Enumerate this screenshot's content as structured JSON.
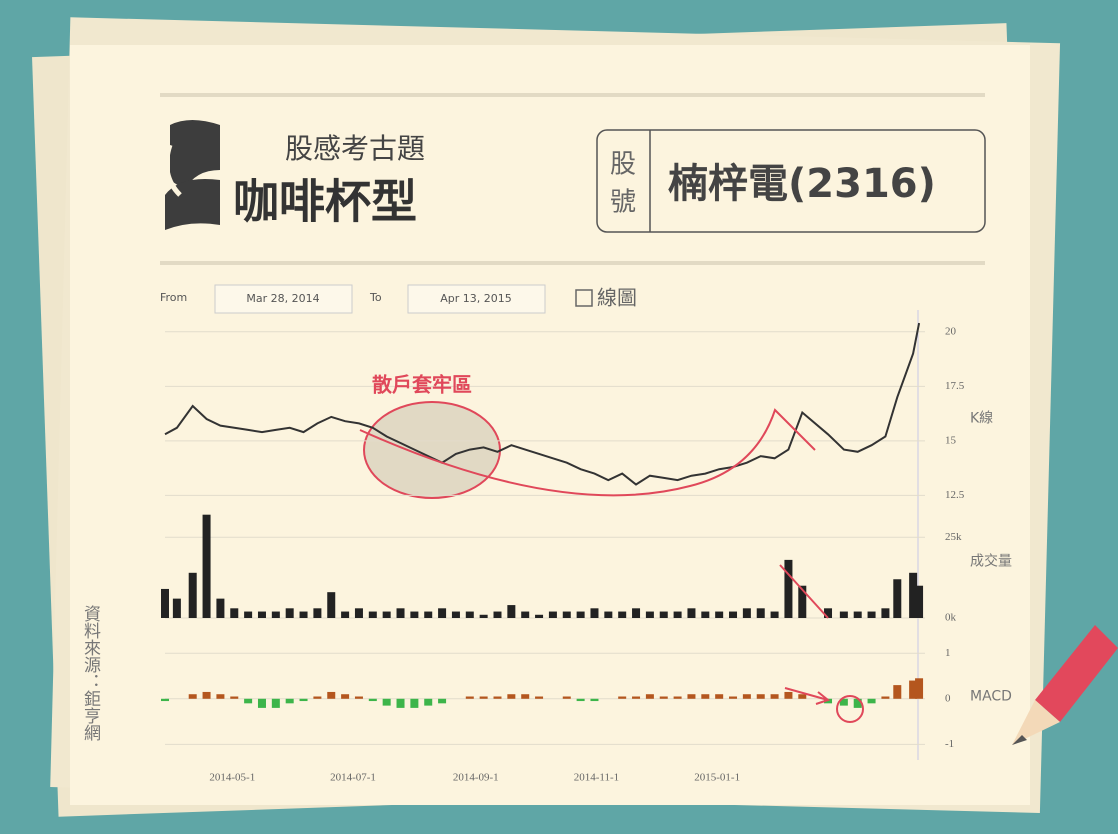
{
  "header": {
    "subtitle": "股感考古題",
    "title": "咖啡杯型",
    "code_label_1": "股",
    "code_label_2": "號",
    "stock": "楠梓電(2316)"
  },
  "controls": {
    "from_label": "From",
    "from_date": "Mar 28, 2014",
    "to_label": "To",
    "to_date": "Apr 13, 2015",
    "checkbox_label": "線圖"
  },
  "source": "資料來源：鉅亨網",
  "chart_data": [
    {
      "type": "line",
      "y_label": "K線",
      "annotation": "散戶套牢區",
      "color": "#333333",
      "grid": true,
      "x": [
        "2014-03-28",
        "2014-04-03",
        "2014-04-11",
        "2014-04-18",
        "2014-04-25",
        "2014-05-02",
        "2014-05-09",
        "2014-05-16",
        "2014-05-23",
        "2014-05-30",
        "2014-06-06",
        "2014-06-13",
        "2014-06-20",
        "2014-06-27",
        "2014-07-04",
        "2014-07-11",
        "2014-07-18",
        "2014-07-25",
        "2014-08-01",
        "2014-08-08",
        "2014-08-15",
        "2014-08-22",
        "2014-08-29",
        "2014-09-05",
        "2014-09-12",
        "2014-09-19",
        "2014-09-26",
        "2014-10-03",
        "2014-10-10",
        "2014-10-17",
        "2014-10-24",
        "2014-10-31",
        "2014-11-07",
        "2014-11-14",
        "2014-11-21",
        "2014-11-28",
        "2014-12-05",
        "2014-12-12",
        "2014-12-19",
        "2014-12-26",
        "2015-01-02",
        "2015-01-09",
        "2015-01-16",
        "2015-01-23",
        "2015-01-30",
        "2015-02-06",
        "2015-02-13",
        "2015-02-26",
        "2015-03-06",
        "2015-03-13",
        "2015-03-20",
        "2015-03-27",
        "2015-04-02",
        "2015-04-10",
        "2015-04-13"
      ],
      "values": [
        15.3,
        15.6,
        16.6,
        16.0,
        15.7,
        15.6,
        15.5,
        15.4,
        15.5,
        15.6,
        15.4,
        15.8,
        16.1,
        15.9,
        15.8,
        15.6,
        15.2,
        14.9,
        14.6,
        14.3,
        14.0,
        14.4,
        14.6,
        14.7,
        14.5,
        14.8,
        14.6,
        14.4,
        14.2,
        14.0,
        13.7,
        13.5,
        13.2,
        13.5,
        13.0,
        13.4,
        13.3,
        13.2,
        13.4,
        13.5,
        13.7,
        13.8,
        14.0,
        14.3,
        14.2,
        14.6,
        16.3,
        15.3,
        14.6,
        14.5,
        14.8,
        15.2,
        17.0,
        19.0,
        20.4
      ],
      "xlim": [
        "2014-03-28",
        "2015-04-16"
      ],
      "ylim": [
        11.6,
        21.0
      ],
      "yticks": [
        12.5,
        15,
        17.5,
        20
      ]
    },
    {
      "type": "bar",
      "y_label": "成交量",
      "color": "#222222",
      "grid": true,
      "x": [
        "2014-03-28",
        "2014-04-03",
        "2014-04-11",
        "2014-04-18",
        "2014-04-25",
        "2014-05-02",
        "2014-05-09",
        "2014-05-16",
        "2014-05-23",
        "2014-05-30",
        "2014-06-06",
        "2014-06-13",
        "2014-06-20",
        "2014-06-27",
        "2014-07-04",
        "2014-07-11",
        "2014-07-18",
        "2014-07-25",
        "2014-08-01",
        "2014-08-08",
        "2014-08-15",
        "2014-08-22",
        "2014-08-29",
        "2014-09-05",
        "2014-09-12",
        "2014-09-19",
        "2014-09-26",
        "2014-10-03",
        "2014-10-10",
        "2014-10-17",
        "2014-10-24",
        "2014-10-31",
        "2014-11-07",
        "2014-11-14",
        "2014-11-21",
        "2014-11-28",
        "2014-12-05",
        "2014-12-12",
        "2014-12-19",
        "2014-12-26",
        "2015-01-02",
        "2015-01-09",
        "2015-01-16",
        "2015-01-23",
        "2015-01-30",
        "2015-02-06",
        "2015-02-13",
        "2015-02-26",
        "2015-03-06",
        "2015-03-13",
        "2015-03-20",
        "2015-03-27",
        "2015-04-02",
        "2015-04-10",
        "2015-04-13"
      ],
      "values": [
        9,
        6,
        14,
        32,
        6,
        3,
        2,
        2,
        2,
        3,
        2,
        3,
        8,
        2,
        3,
        2,
        2,
        3,
        2,
        2,
        3,
        2,
        2,
        1,
        2,
        4,
        2,
        1,
        2,
        2,
        2,
        3,
        2,
        2,
        3,
        2,
        2,
        2,
        3,
        2,
        2,
        2,
        3,
        3,
        2,
        18,
        10,
        3,
        2,
        2,
        2,
        3,
        12,
        14,
        10
      ],
      "xlim": [
        "2014-03-28",
        "2015-04-16"
      ],
      "ylim": [
        0,
        35
      ],
      "yticks": [
        {
          "value": 0,
          "label": "0k"
        },
        {
          "value": 25,
          "label": "25k"
        }
      ]
    },
    {
      "type": "bar",
      "y_label": "MACD",
      "color": "#b4561e",
      "negative_color": "#3db54a",
      "grid": true,
      "x": [
        "2014-03-28",
        "2014-04-03",
        "2014-04-11",
        "2014-04-18",
        "2014-04-25",
        "2014-05-02",
        "2014-05-09",
        "2014-05-16",
        "2014-05-23",
        "2014-05-30",
        "2014-06-06",
        "2014-06-13",
        "2014-06-20",
        "2014-06-27",
        "2014-07-04",
        "2014-07-11",
        "2014-07-18",
        "2014-07-25",
        "2014-08-01",
        "2014-08-08",
        "2014-08-15",
        "2014-08-22",
        "2014-08-29",
        "2014-09-05",
        "2014-09-12",
        "2014-09-19",
        "2014-09-26",
        "2014-10-03",
        "2014-10-10",
        "2014-10-17",
        "2014-10-24",
        "2014-10-31",
        "2014-11-07",
        "2014-11-14",
        "2014-11-21",
        "2014-11-28",
        "2014-12-05",
        "2014-12-12",
        "2014-12-19",
        "2014-12-26",
        "2015-01-02",
        "2015-01-09",
        "2015-01-16",
        "2015-01-23",
        "2015-01-30",
        "2015-02-06",
        "2015-02-13",
        "2015-02-26",
        "2015-03-06",
        "2015-03-13",
        "2015-03-20",
        "2015-03-27",
        "2015-04-02",
        "2015-04-10",
        "2015-04-13"
      ],
      "values": [
        -0.05,
        0,
        0.1,
        0.15,
        0.1,
        0.05,
        -0.1,
        -0.2,
        -0.2,
        -0.1,
        -0.05,
        0.05,
        0.15,
        0.1,
        0.05,
        -0.05,
        -0.15,
        -0.2,
        -0.2,
        -0.15,
        -0.1,
        0,
        0.05,
        0.05,
        0.05,
        0.1,
        0.1,
        0.05,
        0,
        0.05,
        -0.05,
        -0.05,
        0,
        0.05,
        0.05,
        0.1,
        0.05,
        0.05,
        0.1,
        0.1,
        0.1,
        0.05,
        0.1,
        0.1,
        0.1,
        0.15,
        0.1,
        -0.1,
        -0.15,
        -0.2,
        -0.1,
        0.05,
        0.3,
        0.4,
        0.45
      ],
      "xlim": [
        "2014-03-28",
        "2015-04-16"
      ],
      "ylim": [
        -1.3,
        1.4
      ],
      "yticks": [
        -1,
        0,
        1
      ],
      "xticks": [
        {
          "value": "2014-05-01",
          "label": "2014-05-1"
        },
        {
          "value": "2014-07-01",
          "label": "2014-07-1"
        },
        {
          "value": "2014-09-01",
          "label": "2014-09-1"
        },
        {
          "value": "2014-11-01",
          "label": "2014-11-1"
        },
        {
          "value": "2015-01-01",
          "label": "2015-01-1"
        }
      ]
    }
  ]
}
